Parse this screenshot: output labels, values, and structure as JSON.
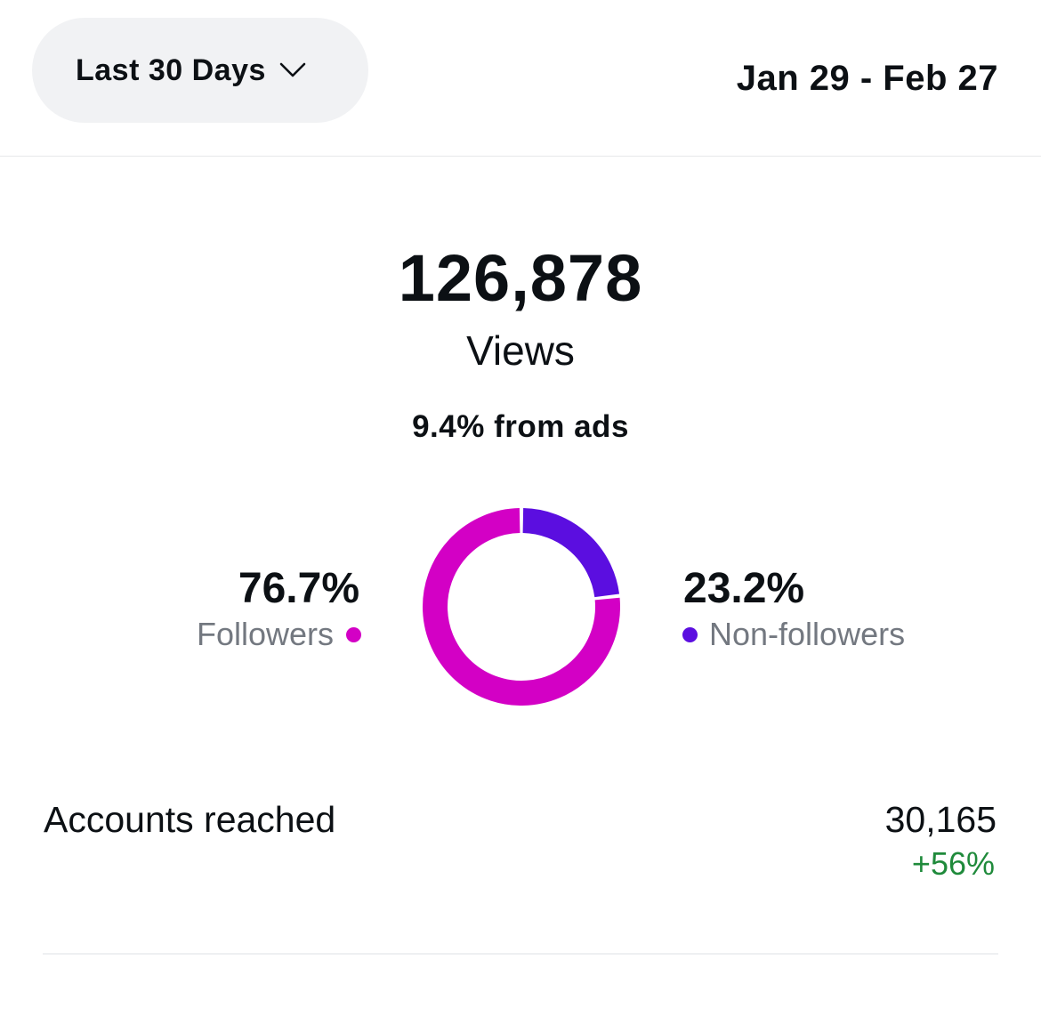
{
  "header": {
    "range_selector": "Last 30 Days",
    "range_icon": "chevron-down-icon",
    "date_range": "Jan 29 - Feb 27"
  },
  "summary": {
    "views_value": "126,878",
    "views_label": "Views",
    "ads_note": "9.4% from ads"
  },
  "breakdown": {
    "followers": {
      "percent_label": "76.7%",
      "label": "Followers",
      "value": 76.7,
      "color": "#d300c5"
    },
    "non_followers": {
      "percent_label": "23.2%",
      "label": "Non-followers",
      "value": 23.2,
      "color": "#5b0ee0"
    }
  },
  "accounts_reached": {
    "label": "Accounts reached",
    "value": "30,165",
    "change": "+56%",
    "change_color": "#1f8a3b"
  }
}
